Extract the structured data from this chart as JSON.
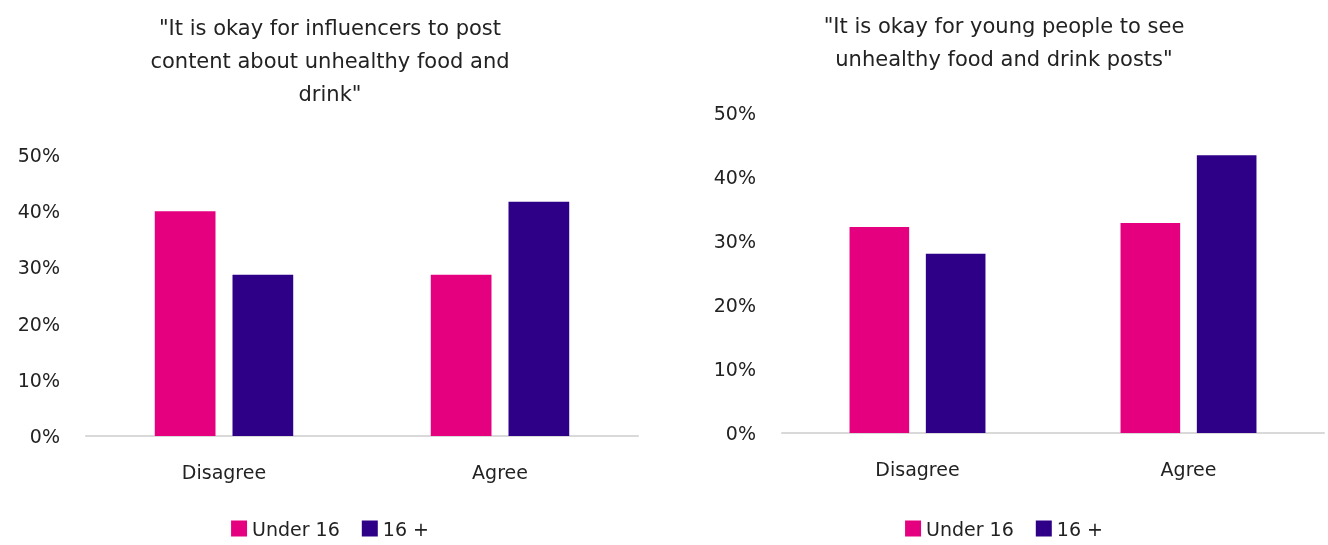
{
  "chart_data": [
    {
      "type": "bar",
      "title": "\"It is okay for influencers to post content about unhealthy food and drink\"",
      "categories": [
        "Disagree",
        "Agree"
      ],
      "series": [
        {
          "name": "Under 16",
          "color": "#e5007f",
          "values": [
            40,
            28.7
          ]
        },
        {
          "name": "16 +",
          "color": "#2e0088",
          "values": [
            28.7,
            41.7
          ]
        }
      ],
      "ylim": [
        0,
        50
      ],
      "yticks": [
        {
          "value": 0,
          "label": "0%"
        },
        {
          "value": 10,
          "label": "10%"
        },
        {
          "value": 20,
          "label": "20%"
        },
        {
          "value": 30,
          "label": "30%"
        },
        {
          "value": 40,
          "label": "40%"
        },
        {
          "value": 50,
          "label": "50%"
        }
      ],
      "grid": false,
      "legend": "bottom"
    },
    {
      "type": "bar",
      "title": "\"It is okay for young people to see unhealthy food and drink posts\"",
      "categories": [
        "Disagree",
        "Agree"
      ],
      "series": [
        {
          "name": "Under 16",
          "color": "#e5007f",
          "values": [
            32.2,
            32.8
          ]
        },
        {
          "name": "16 +",
          "color": "#2e0088",
          "values": [
            28,
            43.4
          ]
        }
      ],
      "ylim": [
        0,
        50
      ],
      "yticks": [
        {
          "value": 0,
          "label": "0%"
        },
        {
          "value": 10,
          "label": "10%"
        },
        {
          "value": 20,
          "label": "20%"
        },
        {
          "value": 30,
          "label": "30%"
        },
        {
          "value": 40,
          "label": "40%"
        },
        {
          "value": 50,
          "label": "50%"
        }
      ],
      "grid": false,
      "legend": "bottom"
    }
  ]
}
